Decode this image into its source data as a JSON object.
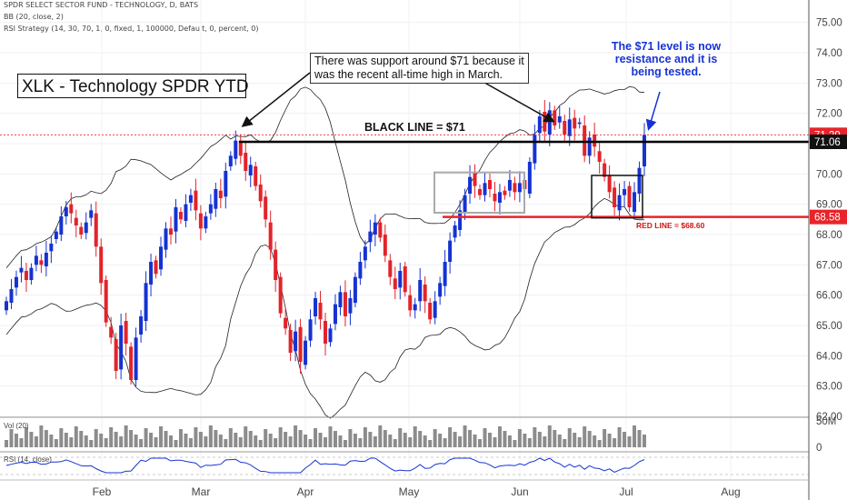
{
  "header": {
    "symbol_line": "SPDR SELECT SECTOR FUND - TECHNOLOGY, D, BATS",
    "bb_line": "BB (20, close, 2)",
    "strategy_line": "RSI Strategy (14, 30, 70, 1, 0, fixed, 1, 100000, Default, 0, percent, 0)"
  },
  "annotations": {
    "ytd_title": "XLK - Technology SPDR YTD",
    "support_note": [
      "There was support around $71 because it",
      "was the recent all-time high in March."
    ],
    "resistance_note": [
      "The $71 level is now",
      "resistance and it is",
      "being tested."
    ],
    "black_line_label": "BLACK LINE = $71",
    "red_line_label": "RED LINE = $68.60"
  },
  "price_tags": [
    {
      "text": "71.29",
      "color": "#e8232a",
      "value": 71.29
    },
    {
      "text": "71.06",
      "color": "#111111",
      "value": 71.06
    },
    {
      "text": "68.58",
      "color": "#e8232a",
      "value": 68.58
    }
  ],
  "volume_label": "Vol (20)",
  "volume_axis_label": "50M",
  "volume_zero_label": "0",
  "rsi_label": "RSI (14, close)",
  "colors": {
    "up": "#1533d1",
    "down": "#e3232a",
    "black_line": "#000000",
    "red_line": "#e8232a"
  },
  "chart_data": {
    "type": "candlestick",
    "title": "SPDR SELECT SECTOR FUND - TECHNOLOGY, D, BATS",
    "ylim": [
      62,
      75.5
    ],
    "y_ticks": [
      "75.00",
      "74.00",
      "73.00",
      "72.00",
      "71.00",
      "70.00",
      "69.00",
      "68.00",
      "67.00",
      "66.00",
      "65.00",
      "64.00",
      "63.00",
      "62.00"
    ],
    "x_ticks": [
      "Feb",
      "Mar",
      "Apr",
      "May",
      "Jun",
      "Jul",
      "Aug"
    ],
    "support_level": 71.06,
    "red_level": 68.58,
    "closes": [
      65.8,
      66.2,
      66.6,
      66.9,
      66.5,
      66.9,
      67.3,
      67.0,
      67.4,
      67.7,
      68.1,
      68.6,
      68.9,
      68.7,
      68.3,
      68.0,
      68.4,
      68.8,
      67.6,
      66.4,
      65.1,
      64.6,
      63.5,
      65.0,
      64.4,
      63.2,
      64.6,
      65.3,
      66.4,
      67.1,
      66.7,
      67.6,
      68.2,
      68.0,
      68.9,
      68.5,
      69.0,
      69.3,
      68.8,
      68.2,
      68.6,
      69.0,
      69.5,
      69.2,
      70.1,
      70.6,
      71.1,
      70.6,
      70.1,
      70.3,
      69.6,
      69.1,
      68.5,
      67.5,
      66.5,
      65.4,
      64.9,
      64.1,
      64.8,
      63.8,
      64.5,
      65.2,
      65.9,
      65.2,
      64.4,
      64.9,
      65.7,
      66.1,
      65.3,
      65.9,
      66.6,
      67.1,
      67.6,
      68.1,
      68.4,
      67.9,
      67.3,
      66.6,
      66.2,
      66.8,
      66.1,
      65.5,
      65.7,
      66.5,
      65.8,
      65.2,
      65.8,
      66.4,
      67.1,
      67.8,
      68.3,
      68.8,
      69.3,
      69.9,
      69.6,
      69.3,
      69.7,
      69.5,
      69.1,
      69.4,
      69.3,
      69.8,
      69.4,
      69.7,
      69.5,
      70.4,
      71.3,
      71.9,
      71.4,
      72.1,
      71.6,
      71.9,
      71.3,
      71.8,
      71.5,
      71.7,
      70.6,
      71.2,
      70.9,
      70.4,
      69.9,
      69.4,
      68.9,
      69.3,
      69.5,
      68.9,
      69.4,
      70.2,
      71.29
    ]
  }
}
